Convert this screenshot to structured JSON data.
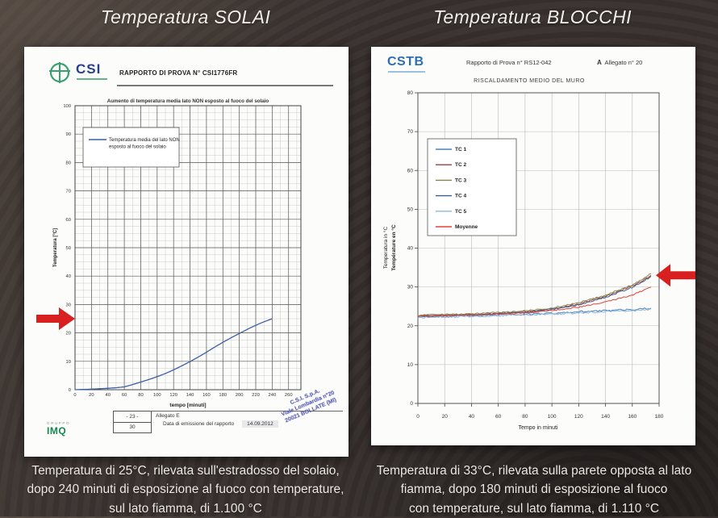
{
  "titles": {
    "left": "Temperatura SOLAI",
    "right": "Temperatura BLOCCHI"
  },
  "captions": {
    "left": [
      "Temperatura di 25°C, rilevata sull'estradosso del solaio,",
      "dopo 240 minuti di esposizione al fuoco con temperature,",
      "sul lato fiamma, di 1.100 °C"
    ],
    "right": [
      "Temperatura di 33°C, rilevata sulla parete opposta al lato",
      "fiamma, dopo 180 minuti di esposizione al fuoco",
      "con temperature, sul lato fiamma, di 1.110 °C"
    ]
  },
  "left_doc": {
    "logo_text": "CSI",
    "report_title": "RAPPORTO DI PROVA N° CSI1776FR",
    "footer": {
      "page_top": "- 23 -",
      "page_bottom": "30",
      "allegato": "Allegato E",
      "date_label": "Data di emissione del rapporto",
      "date_value": "14.09.2012",
      "stamp_lines": [
        "C.S.I. S.p.A.",
        "Viale Lombardia n°20",
        "20021 BOLLATE (MI)"
      ],
      "imq_small": "GRUPPO",
      "imq": "IMQ"
    }
  },
  "right_doc": {
    "logo_text": "CSTB",
    "report_title": "Rapporto di Prova n° RS12-042",
    "allegato_bold": "A",
    "allegato": "  Allegato n° 20"
  },
  "colors": {
    "arrow_red": "#d7201f",
    "csi_blue": "#23418e",
    "csi_green": "#3aa070",
    "cstb_blue": "#2e6db5",
    "imq_green": "#17854f",
    "stamp_blue": "#4a51b0"
  },
  "chart_data": [
    {
      "id": "solai",
      "type": "line",
      "title": "Aumento di temperatura media lato NON esposto al fuoco del solaio",
      "xlabel": "tempo [minuti]",
      "ylabel": "Temperatura [°C]",
      "xlim": [
        0,
        275
      ],
      "ylim": [
        0,
        100
      ],
      "xticks": [
        0,
        20,
        40,
        60,
        80,
        100,
        120,
        140,
        160,
        180,
        200,
        220,
        240,
        260
      ],
      "yticks": [
        0,
        10,
        20,
        30,
        40,
        50,
        60,
        70,
        80,
        90,
        100
      ],
      "grid": "minor+major",
      "legend_position": "upper-left",
      "legend": [
        {
          "label": [
            "Temperatura media del lato NON",
            "esposto al fuoco del solaio"
          ],
          "color": "#3a5fa5"
        }
      ],
      "series": [
        {
          "name": "Temperatura media lato NON esposto",
          "color": "#3a5fa5",
          "x": [
            0,
            10,
            20,
            30,
            40,
            50,
            60,
            70,
            80,
            90,
            100,
            110,
            120,
            130,
            140,
            150,
            160,
            170,
            180,
            190,
            200,
            210,
            220,
            230,
            240
          ],
          "y": [
            0,
            0.1,
            0.2,
            0.35,
            0.5,
            0.7,
            1.0,
            1.8,
            2.7,
            3.6,
            4.6,
            5.7,
            7.0,
            8.4,
            9.9,
            11.5,
            13.2,
            15.0,
            16.7,
            18.3,
            19.8,
            21.3,
            22.7,
            23.9,
            25.0
          ]
        }
      ],
      "arrow": {
        "side": "left",
        "y": 25
      }
    },
    {
      "id": "blocchi",
      "type": "line",
      "title": "RISCALDAMENTO MEDIO DEL MURO",
      "xlabel": "Tempo in minuti",
      "ylabel": [
        "Temperatura in °C",
        "Température en °C"
      ],
      "xlim": [
        0,
        180
      ],
      "ylim": [
        0,
        80
      ],
      "xticks": [
        0,
        20,
        40,
        60,
        80,
        100,
        120,
        140,
        160,
        180
      ],
      "yticks": [
        0,
        10,
        20,
        30,
        40,
        50,
        60,
        70,
        80
      ],
      "grid": "major",
      "legend_position": "upper-left",
      "legend": [
        {
          "label": "TC 1",
          "color": "#4f81bd"
        },
        {
          "label": "TC 2",
          "color": "#9a4540"
        },
        {
          "label": "TC 3",
          "color": "#86864f"
        },
        {
          "label": "TC 4",
          "color": "#3c5e8a"
        },
        {
          "label": "TC 5",
          "color": "#8ab8dc"
        },
        {
          "label": "Moyenne",
          "color": "#e04038"
        }
      ],
      "series": [
        {
          "name": "TC 1",
          "color": "#4f81bd",
          "noise": 0.22,
          "x": [
            0,
            20,
            40,
            60,
            80,
            100,
            120,
            140,
            160,
            174
          ],
          "y": [
            22.3,
            22.4,
            22.6,
            22.8,
            23.0,
            23.2,
            23.6,
            23.9,
            24.2,
            24.5
          ]
        },
        {
          "name": "TC 2",
          "color": "#9a4540",
          "noise": 0.18,
          "x": [
            0,
            20,
            40,
            60,
            80,
            100,
            120,
            140,
            160,
            174
          ],
          "y": [
            22.5,
            22.7,
            22.9,
            23.2,
            23.6,
            24.3,
            25.6,
            27.6,
            30.2,
            32.9
          ]
        },
        {
          "name": "TC 3",
          "color": "#86864f",
          "noise": 0.18,
          "x": [
            0,
            20,
            40,
            60,
            80,
            100,
            120,
            140,
            160,
            174
          ],
          "y": [
            22.7,
            22.9,
            23.1,
            23.4,
            23.8,
            24.6,
            25.9,
            27.9,
            30.5,
            33.4
          ]
        },
        {
          "name": "TC 4",
          "color": "#3c5e8a",
          "noise": 0.18,
          "x": [
            0,
            20,
            40,
            60,
            80,
            100,
            120,
            140,
            160,
            174
          ],
          "y": [
            22.4,
            22.6,
            22.8,
            23.1,
            23.5,
            24.2,
            25.4,
            27.3,
            29.9,
            32.6
          ]
        },
        {
          "name": "TC 5",
          "color": "#8ab8dc",
          "noise": 0.22,
          "x": [
            0,
            20,
            40,
            60,
            80,
            100,
            120,
            140,
            160,
            174
          ],
          "y": [
            22.1,
            22.2,
            22.4,
            22.6,
            22.8,
            23.0,
            23.3,
            23.6,
            23.9,
            24.2
          ]
        },
        {
          "name": "Moyenne",
          "color": "#e04038",
          "noise": 0.15,
          "x": [
            0,
            20,
            40,
            60,
            80,
            100,
            120,
            140,
            160,
            174
          ],
          "y": [
            22.4,
            22.6,
            22.8,
            23.0,
            23.3,
            23.9,
            24.8,
            26.1,
            27.9,
            30.0
          ]
        }
      ],
      "arrow": {
        "side": "right",
        "y": 33
      }
    }
  ]
}
